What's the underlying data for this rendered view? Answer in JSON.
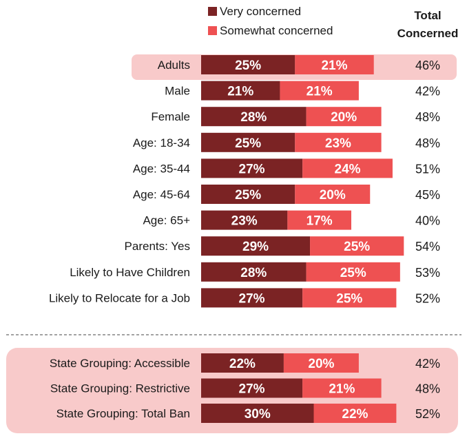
{
  "chart_data": {
    "type": "bar",
    "orientation": "horizontal",
    "stacked": true,
    "legend": [
      {
        "name": "Very concerned",
        "color": "#7b2324"
      },
      {
        "name": "Somewhat concerned",
        "color": "#ee5152"
      }
    ],
    "total_header": [
      "Total",
      "Concerned"
    ],
    "colors": {
      "very": "#7b2324",
      "somewhat": "#ee5152",
      "highlight": "#f8caca",
      "divider": "#444444"
    },
    "groups": [
      {
        "rows": [
          {
            "label": "Adults",
            "very": 25,
            "somewhat": 21,
            "very_text": "25%",
            "somewhat_text": "21%",
            "total": "46%",
            "highlight": true
          },
          {
            "label": "Male",
            "very": 21,
            "somewhat": 21,
            "very_text": "21%",
            "somewhat_text": "21%",
            "total": "42%"
          },
          {
            "label": "Female",
            "very": 28,
            "somewhat": 20,
            "very_text": "28%",
            "somewhat_text": "20%",
            "total": "48%"
          },
          {
            "label": "Age: 18-34",
            "very": 25,
            "somewhat": 23,
            "very_text": "25%",
            "somewhat_text": "23%",
            "total": "48%"
          },
          {
            "label": "Age: 35-44",
            "very": 27,
            "somewhat": 24,
            "very_text": "27%",
            "somewhat_text": "24%",
            "total": "51%"
          },
          {
            "label": "Age: 45-64",
            "very": 25,
            "somewhat": 20,
            "very_text": "25%",
            "somewhat_text": "20%",
            "total": "45%"
          },
          {
            "label": "Age: 65+",
            "very": 23,
            "somewhat": 17,
            "very_text": "23%",
            "somewhat_text": "17%",
            "total": "40%"
          },
          {
            "label": "Parents: Yes",
            "very": 29,
            "somewhat": 25,
            "very_text": "29%",
            "somewhat_text": "25%",
            "total": "54%"
          },
          {
            "label": "Likely to Have Children",
            "very": 28,
            "somewhat": 25,
            "very_text": "28%",
            "somewhat_text": "25%",
            "total": "53%"
          },
          {
            "label": "Likely to Relocate for a Job",
            "very": 27,
            "somewhat": 25,
            "very_text": "27%",
            "somewhat_text": "25%",
            "total": "52%"
          }
        ]
      },
      {
        "highlight": true,
        "rows": [
          {
            "label": "State Grouping: Accessible",
            "very": 22,
            "somewhat": 20,
            "very_text": "22%",
            "somewhat_text": "20%",
            "total": "42%"
          },
          {
            "label": "State Grouping: Restrictive",
            "very": 27,
            "somewhat": 21,
            "very_text": "27%",
            "somewhat_text": "21%",
            "total": "48%"
          },
          {
            "label": "State Grouping: Total Ban",
            "very": 30,
            "somewhat": 22,
            "very_text": "30%",
            "somewhat_text": "22%",
            "total": "52%"
          }
        ]
      }
    ]
  }
}
